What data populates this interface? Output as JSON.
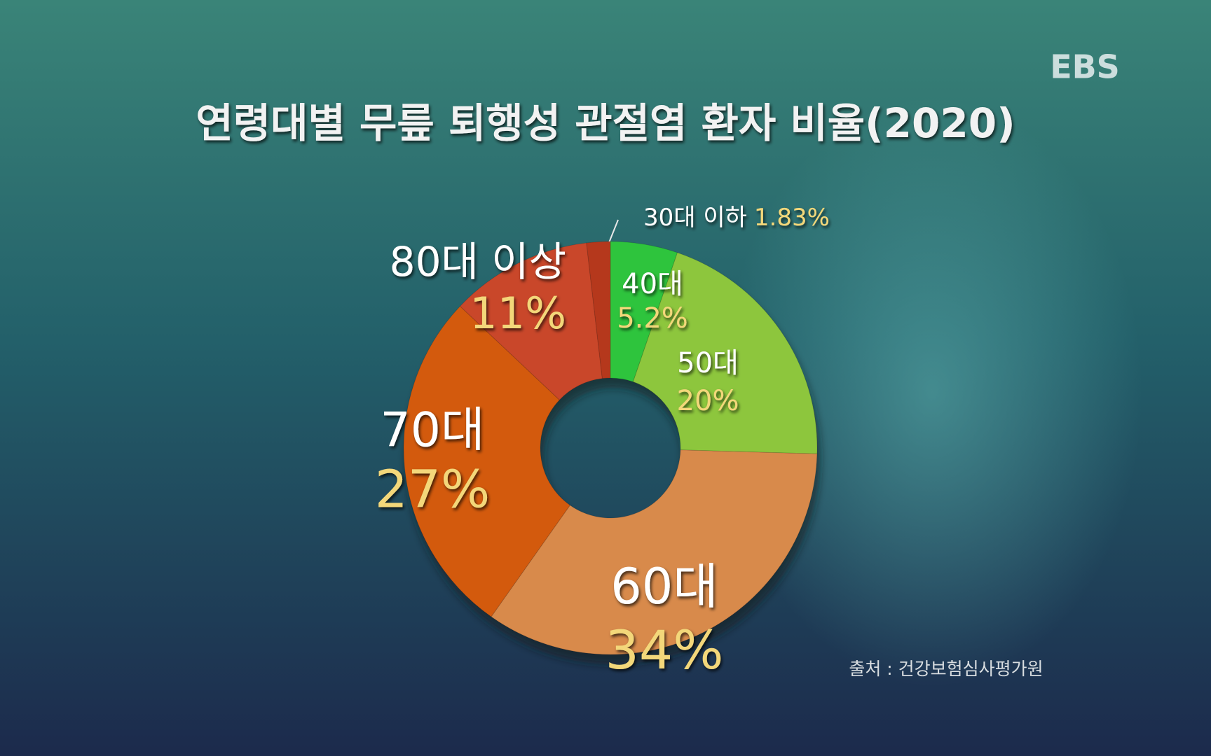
{
  "chart_data": {
    "type": "donut",
    "title": "연령대별 무릎 퇴행성 관절염 환자 비율(2020)",
    "source": "출처 : 건강보험심사평가원",
    "logo": "EBS",
    "categories": [
      "40대",
      "50대",
      "60대",
      "70대",
      "80대 이상",
      "30대 이하"
    ],
    "values": [
      5.2,
      20,
      34,
      27,
      11,
      1.83
    ],
    "value_labels": [
      "5.2%",
      "20%",
      "34%",
      "27%",
      "11%",
      "1.83%"
    ],
    "colors": [
      "#2fc43c",
      "#8dc63c",
      "#d88a4c",
      "#d35a10",
      "#c9472a",
      "#b5381c"
    ]
  }
}
